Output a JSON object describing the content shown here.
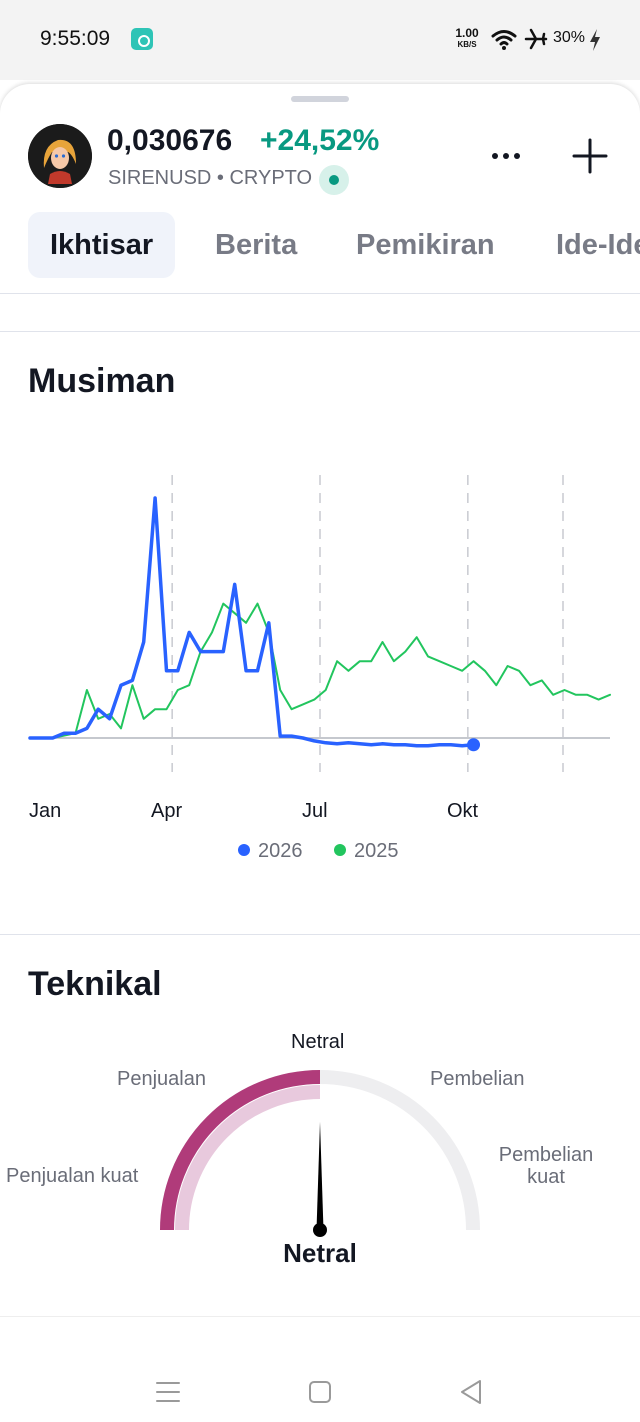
{
  "status_bar": {
    "time": "9:55:09",
    "net_speed": "1.00",
    "net_unit": "KB/S",
    "battery": "30%",
    "icons": [
      "app-notification-icon",
      "wifi-icon",
      "airplane-mode-icon",
      "charging-bolt-icon"
    ]
  },
  "header": {
    "price": "0,030676",
    "change": "+24,52%",
    "symbol": "SIRENUSD • CRYPTO",
    "change_color": "#089981",
    "icons": [
      "avatar-logo",
      "live-status-icon",
      "more-icon",
      "add-icon"
    ]
  },
  "tabs": [
    {
      "label": "Ikhtisar",
      "active": true
    },
    {
      "label": "Berita"
    },
    {
      "label": "Pemikiran"
    },
    {
      "label": "Ide-Ide"
    }
  ],
  "seasonal": {
    "title": "Musiman",
    "months": [
      "Jan",
      "Apr",
      "Jul",
      "Okt"
    ],
    "legend": [
      {
        "label": "2026",
        "color": "#2962ff"
      },
      {
        "label": "2025",
        "color": "#22c55e"
      }
    ]
  },
  "chart_data": {
    "type": "line",
    "x_labels": [
      "Jan",
      "Apr",
      "Jul",
      "Okt"
    ],
    "x_unit": "week of year",
    "xlim": [
      1,
      52
    ],
    "y_unit": "relative change",
    "grid": "vertical dashed lines at quarter boundaries",
    "legend_position": "bottom-center",
    "series": [
      {
        "name": "2026",
        "color": "#2962ff",
        "x": [
          1,
          3,
          4,
          5,
          6,
          7,
          8,
          9,
          10,
          11,
          12,
          13,
          14,
          15,
          16,
          17,
          18,
          19,
          20,
          21,
          22,
          23,
          24,
          25,
          26,
          27,
          28,
          29,
          30,
          31,
          32,
          33,
          34,
          35,
          36,
          37,
          38,
          39,
          40
        ],
        "values": [
          0,
          0,
          0.05,
          0.05,
          0.1,
          0.3,
          0.2,
          0.55,
          0.6,
          1.0,
          2.5,
          0.7,
          0.7,
          1.1,
          0.9,
          0.9,
          0.9,
          1.6,
          0.7,
          0.7,
          1.2,
          0.02,
          0.02,
          0,
          -0.03,
          -0.05,
          -0.06,
          -0.05,
          -0.06,
          -0.07,
          -0.06,
          -0.07,
          -0.07,
          -0.08,
          -0.08,
          -0.07,
          -0.07,
          -0.08,
          -0.07
        ]
      },
      {
        "name": "2025",
        "color": "#22c55e",
        "x": [
          1,
          3,
          5,
          6,
          7,
          8,
          9,
          10,
          11,
          12,
          13,
          14,
          15,
          16,
          17,
          18,
          19,
          20,
          21,
          22,
          23,
          24,
          25,
          26,
          27,
          28,
          29,
          30,
          31,
          32,
          33,
          34,
          35,
          36,
          37,
          38,
          39,
          40,
          41,
          42,
          43,
          44,
          45,
          46,
          47,
          48,
          49,
          50,
          51,
          52
        ],
        "values": [
          0,
          0,
          0.05,
          0.5,
          0.2,
          0.25,
          0.1,
          0.55,
          0.2,
          0.3,
          0.3,
          0.5,
          0.55,
          0.9,
          1.1,
          1.4,
          1.3,
          1.2,
          1.4,
          1.1,
          0.5,
          0.3,
          0.35,
          0.4,
          0.5,
          0.8,
          0.7,
          0.8,
          0.8,
          1.0,
          0.8,
          0.9,
          1.05,
          0.85,
          0.8,
          0.75,
          0.7,
          0.8,
          0.7,
          0.55,
          0.75,
          0.7,
          0.55,
          0.6,
          0.45,
          0.5,
          0.45,
          0.45,
          0.4,
          0.45
        ]
      }
    ]
  },
  "technical": {
    "title": "Teknikal",
    "labels": {
      "strong_sell": "Penjualan kuat",
      "sell": "Penjualan",
      "neutral": "Netral",
      "buy": "Pembelian",
      "strong_buy_line1": "Pembelian",
      "strong_buy_line2": "kuat"
    },
    "value": "Netral",
    "level": 0.5,
    "colors": {
      "active": "#b03b7a",
      "active_light": "#e8c9dd",
      "inactive": "#eeeef0",
      "needle": "#000000"
    }
  },
  "nav_bar": {
    "icons": [
      "menu-icon",
      "home-icon",
      "back-icon"
    ]
  }
}
